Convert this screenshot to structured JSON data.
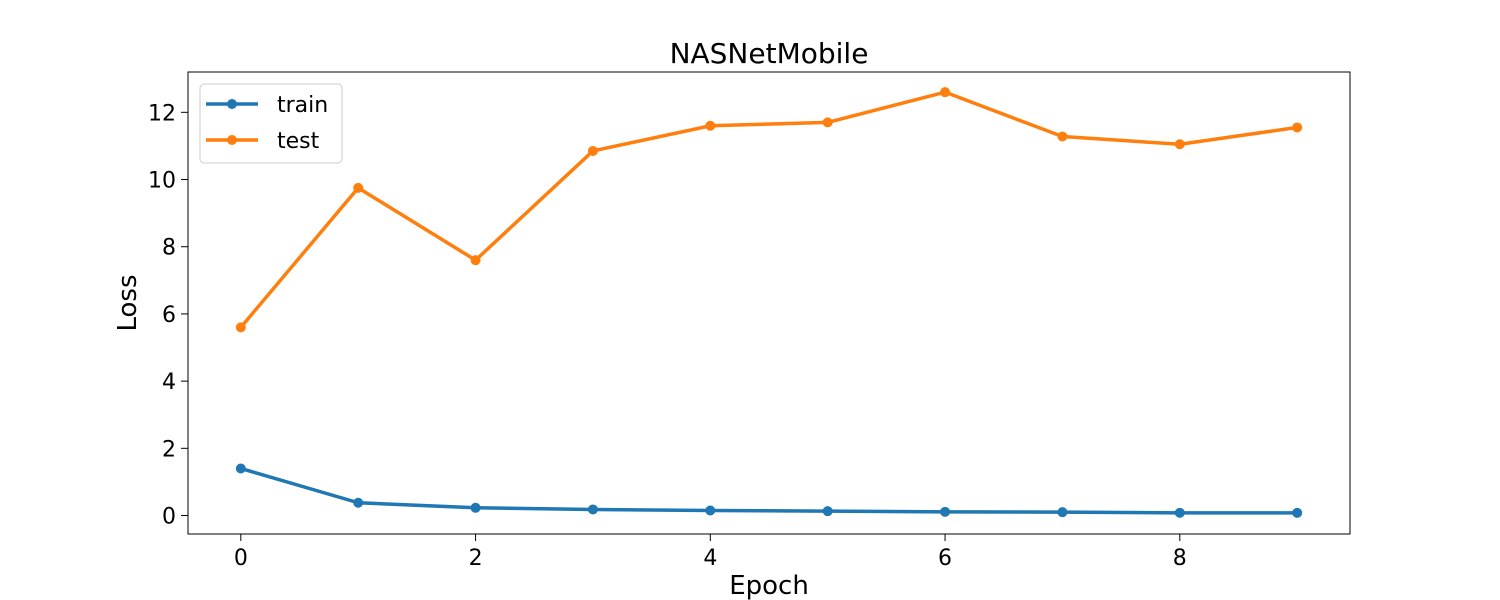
{
  "chart_data": {
    "type": "line",
    "title": "NASNetMobile",
    "xlabel": "Epoch",
    "ylabel": "Loss",
    "x": [
      0,
      1,
      2,
      3,
      4,
      5,
      6,
      7,
      8,
      9
    ],
    "xlim": [
      -0.45,
      9.45
    ],
    "ylim": [
      -0.55,
      13.2
    ],
    "xticks": [
      0,
      2,
      4,
      6,
      8
    ],
    "yticks": [
      0,
      2,
      4,
      6,
      8,
      10,
      12
    ],
    "grid": false,
    "legend_position": "top-left",
    "series": [
      {
        "name": "train",
        "color": "#1f77b4",
        "values": [
          1.4,
          0.38,
          0.23,
          0.18,
          0.15,
          0.13,
          0.11,
          0.1,
          0.08,
          0.08
        ]
      },
      {
        "name": "test",
        "color": "#ff7f0e",
        "values": [
          5.6,
          9.75,
          7.6,
          10.85,
          11.6,
          11.7,
          12.6,
          11.28,
          11.05,
          11.55
        ]
      }
    ]
  }
}
